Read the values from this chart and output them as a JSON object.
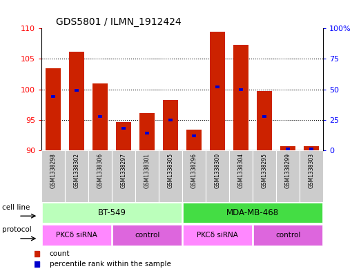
{
  "title": "GDS5801 / ILMN_1912424",
  "samples": [
    "GSM1338298",
    "GSM1338302",
    "GSM1338306",
    "GSM1338297",
    "GSM1338301",
    "GSM1338305",
    "GSM1338296",
    "GSM1338300",
    "GSM1338304",
    "GSM1338295",
    "GSM1338299",
    "GSM1338303"
  ],
  "count_values": [
    103.5,
    106.2,
    101.0,
    94.7,
    96.1,
    98.3,
    93.4,
    109.5,
    107.3,
    99.7,
    90.7,
    90.7
  ],
  "percentile_values": [
    44,
    49,
    28,
    18,
    14,
    25,
    12,
    52,
    50,
    28,
    1,
    1
  ],
  "ylim_left": [
    90,
    110
  ],
  "ylim_right": [
    0,
    100
  ],
  "yticks_left": [
    90,
    95,
    100,
    105,
    110
  ],
  "yticks_right": [
    0,
    25,
    50,
    75,
    100
  ],
  "bar_color": "#cc2200",
  "pct_color": "#0000cc",
  "cell_line_groups": [
    {
      "label": "BT-549",
      "start": 0,
      "end": 6,
      "color": "#bbffbb"
    },
    {
      "label": "MDA-MB-468",
      "start": 6,
      "end": 12,
      "color": "#44dd44"
    }
  ],
  "protocol_groups": [
    {
      "label": "PKCδ siRNA",
      "start": 0,
      "end": 3,
      "color": "#ff88ff"
    },
    {
      "label": "control",
      "start": 3,
      "end": 6,
      "color": "#dd66dd"
    },
    {
      "label": "PKCδ siRNA",
      "start": 6,
      "end": 9,
      "color": "#ff88ff"
    },
    {
      "label": "control",
      "start": 9,
      "end": 12,
      "color": "#dd66dd"
    }
  ],
  "sample_bg_color": "#cccccc",
  "legend_count_color": "#cc2200",
  "legend_pct_color": "#0000cc"
}
